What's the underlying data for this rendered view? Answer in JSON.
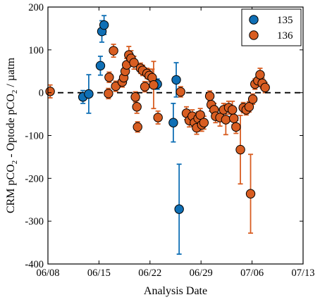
{
  "chart_data": {
    "type": "scatter",
    "xlabel": "Analysis Date",
    "ylabel_parts": {
      "a": "CRM pCO",
      "sub1": "2",
      "b": " - Optode pCO",
      "sub2": "2",
      "c": " / µatm"
    },
    "x_ticks": [
      {
        "day": 0,
        "label": "06/08"
      },
      {
        "day": 7,
        "label": "06/15"
      },
      {
        "day": 14,
        "label": "06/22"
      },
      {
        "day": 21,
        "label": "06/29"
      },
      {
        "day": 28,
        "label": "07/06"
      },
      {
        "day": 35,
        "label": "07/13"
      }
    ],
    "xlim": [
      0,
      35
    ],
    "ylim": [
      -400,
      200
    ],
    "y_ticks": [
      200,
      100,
      0,
      -100,
      -200,
      -300,
      -400
    ],
    "zero_line": {
      "y": 0,
      "style": "dashed"
    },
    "grid": false,
    "legend": {
      "placement": "top-right"
    },
    "series": [
      {
        "name": "135",
        "color": "#0f6fb5",
        "points": [
          {
            "x": 4.8,
            "y": -10,
            "err": 15
          },
          {
            "x": 5.6,
            "y": -3,
            "err": 45
          },
          {
            "x": 7.2,
            "y": 63,
            "err": 22
          },
          {
            "x": 7.4,
            "y": 143,
            "err": 25
          },
          {
            "x": 7.7,
            "y": 158,
            "err": 22
          },
          {
            "x": 15.0,
            "y": 20,
            "err": 12
          },
          {
            "x": 17.6,
            "y": 30,
            "err": 40
          },
          {
            "x": 17.2,
            "y": -70,
            "err": 45
          },
          {
            "x": 18.0,
            "y": -272,
            "err": 105
          }
        ]
      },
      {
        "name": "136",
        "color": "#d85d21",
        "points": [
          {
            "x": 0.3,
            "y": 3,
            "err": 15
          },
          {
            "x": 8.3,
            "y": -2,
            "err": 12
          },
          {
            "x": 8.4,
            "y": 36,
            "err": 12
          },
          {
            "x": 9.0,
            "y": 98,
            "err": 15
          },
          {
            "x": 9.3,
            "y": 15,
            "err": 12
          },
          {
            "x": 10.2,
            "y": 25,
            "err": 12
          },
          {
            "x": 10.4,
            "y": 35,
            "err": 12
          },
          {
            "x": 10.6,
            "y": 50,
            "err": 15
          },
          {
            "x": 10.8,
            "y": 65,
            "err": 15
          },
          {
            "x": 11.1,
            "y": 88,
            "err": 20
          },
          {
            "x": 11.4,
            "y": 80,
            "err": 18
          },
          {
            "x": 11.8,
            "y": 70,
            "err": 15
          },
          {
            "x": 12.0,
            "y": -10,
            "err": 12
          },
          {
            "x": 12.2,
            "y": -33,
            "err": 15
          },
          {
            "x": 12.3,
            "y": -80,
            "err": 12
          },
          {
            "x": 12.7,
            "y": 57,
            "err": 12
          },
          {
            "x": 13.0,
            "y": 52,
            "err": 12
          },
          {
            "x": 13.3,
            "y": 14,
            "err": 12
          },
          {
            "x": 13.6,
            "y": 45,
            "err": 12
          },
          {
            "x": 13.9,
            "y": 40,
            "err": 15
          },
          {
            "x": 14.3,
            "y": 35,
            "err": 20
          },
          {
            "x": 14.5,
            "y": 18,
            "err": 55
          },
          {
            "x": 15.1,
            "y": -58,
            "err": 15
          },
          {
            "x": 18.2,
            "y": 2,
            "err": 12
          },
          {
            "x": 19.0,
            "y": -48,
            "err": 15
          },
          {
            "x": 19.4,
            "y": -65,
            "err": 15
          },
          {
            "x": 19.8,
            "y": -55,
            "err": 15
          },
          {
            "x": 20.1,
            "y": -70,
            "err": 15
          },
          {
            "x": 20.4,
            "y": -82,
            "err": 15
          },
          {
            "x": 20.6,
            "y": -60,
            "err": 15
          },
          {
            "x": 20.9,
            "y": -52,
            "err": 15
          },
          {
            "x": 21.1,
            "y": -75,
            "err": 15
          },
          {
            "x": 21.4,
            "y": -70,
            "err": 15
          },
          {
            "x": 22.2,
            "y": -8,
            "err": 12
          },
          {
            "x": 22.4,
            "y": -28,
            "err": 15
          },
          {
            "x": 22.8,
            "y": -40,
            "err": 15
          },
          {
            "x": 23.0,
            "y": -55,
            "err": 15
          },
          {
            "x": 23.6,
            "y": -58,
            "err": 20
          },
          {
            "x": 24.1,
            "y": -40,
            "err": 15
          },
          {
            "x": 24.4,
            "y": -63,
            "err": 35
          },
          {
            "x": 24.8,
            "y": -35,
            "err": 15
          },
          {
            "x": 25.3,
            "y": -40,
            "err": 20
          },
          {
            "x": 25.5,
            "y": -60,
            "err": 15
          },
          {
            "x": 25.8,
            "y": -80,
            "err": 15
          },
          {
            "x": 26.4,
            "y": -133,
            "err": 80
          },
          {
            "x": 26.8,
            "y": -35,
            "err": 12
          },
          {
            "x": 27.2,
            "y": -40,
            "err": 12
          },
          {
            "x": 27.6,
            "y": -33,
            "err": 12
          },
          {
            "x": 27.8,
            "y": -236,
            "err": 92
          },
          {
            "x": 28.1,
            "y": -15,
            "err": 12
          },
          {
            "x": 28.4,
            "y": 20,
            "err": 12
          },
          {
            "x": 28.8,
            "y": 28,
            "err": 12
          },
          {
            "x": 29.1,
            "y": 42,
            "err": 15
          },
          {
            "x": 29.4,
            "y": 22,
            "err": 12
          },
          {
            "x": 29.8,
            "y": 12,
            "err": 12
          }
        ]
      }
    ]
  }
}
